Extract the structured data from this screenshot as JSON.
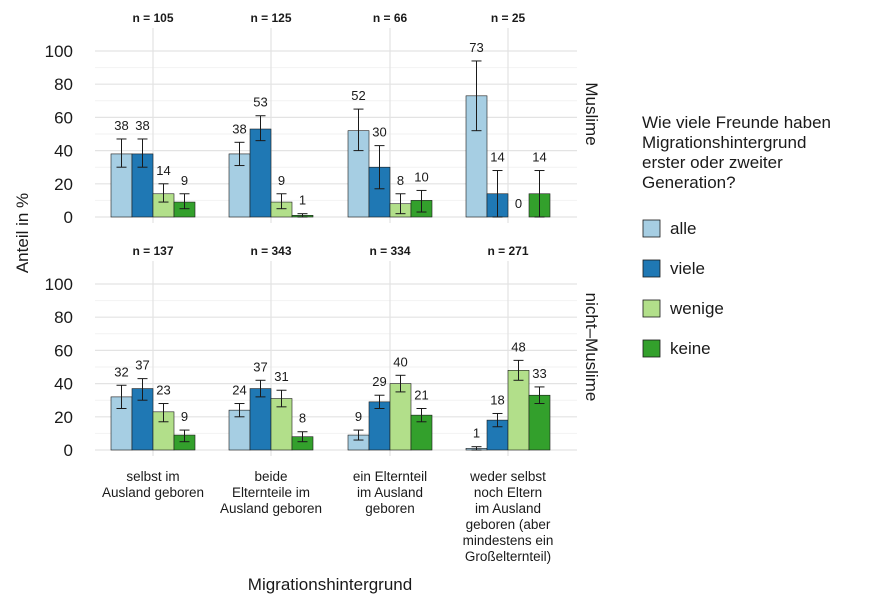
{
  "chart_data": {
    "type": "bar",
    "ylabel": "Anteil in %",
    "xlabel": "Migrationshintergrund",
    "ylim": [
      0,
      100
    ],
    "yticks": [
      0,
      20,
      40,
      60,
      80,
      100
    ],
    "grid": true,
    "legend": {
      "title_lines": [
        "Wie viele Freunde haben",
        "Migrationshintergrund",
        "erster oder zweiter",
        "Generation?"
      ],
      "placement": "right",
      "items": [
        {
          "label": "alle",
          "color": "#a6cee3"
        },
        {
          "label": "viele",
          "color": "#1f78b4"
        },
        {
          "label": "wenige",
          "color": "#b2df8a"
        },
        {
          "label": "keine",
          "color": "#33a02c"
        }
      ]
    },
    "categories": [
      [
        "selbst im",
        "Ausland geboren"
      ],
      [
        "beide",
        "Elternteile im",
        "Ausland geboren"
      ],
      [
        "ein Elternteil",
        "im Ausland",
        "geboren"
      ],
      [
        "weder selbst",
        "noch Eltern",
        "im Ausland",
        "geboren (aber",
        "mindestens ein",
        "Großelternteil)"
      ]
    ],
    "series_names": [
      "alle",
      "viele",
      "wenige",
      "keine"
    ],
    "panels": [
      {
        "strip": "Muslime",
        "n_labels": [
          "n = 105",
          "n = 125",
          "n = 66",
          "n = 25"
        ],
        "values": [
          [
            38,
            38,
            14,
            9
          ],
          [
            38,
            53,
            9,
            1
          ],
          [
            52,
            30,
            8,
            10
          ],
          [
            73,
            14,
            0,
            14
          ]
        ],
        "ci_low": [
          [
            30,
            30,
            9,
            5
          ],
          [
            31,
            46,
            5,
            0
          ],
          [
            40,
            17,
            2,
            3
          ],
          [
            52,
            0,
            0,
            0
          ]
        ],
        "ci_high": [
          [
            47,
            47,
            20,
            14
          ],
          [
            45,
            61,
            14,
            2
          ],
          [
            65,
            43,
            14,
            16
          ],
          [
            94,
            28,
            0,
            28
          ]
        ]
      },
      {
        "strip": "nicht–Muslime",
        "n_labels": [
          "n = 137",
          "n = 343",
          "n = 334",
          "n = 271"
        ],
        "values": [
          [
            32,
            37,
            23,
            9
          ],
          [
            24,
            37,
            31,
            8
          ],
          [
            9,
            29,
            40,
            21
          ],
          [
            1,
            18,
            48,
            33
          ]
        ],
        "ci_low": [
          [
            25,
            30,
            17,
            5
          ],
          [
            20,
            32,
            26,
            5
          ],
          [
            6,
            25,
            35,
            17
          ],
          [
            0,
            14,
            42,
            28
          ]
        ],
        "ci_high": [
          [
            39,
            43,
            28,
            12
          ],
          [
            28,
            42,
            36,
            11
          ],
          [
            12,
            33,
            45,
            25
          ],
          [
            2,
            22,
            54,
            38
          ]
        ]
      }
    ]
  }
}
